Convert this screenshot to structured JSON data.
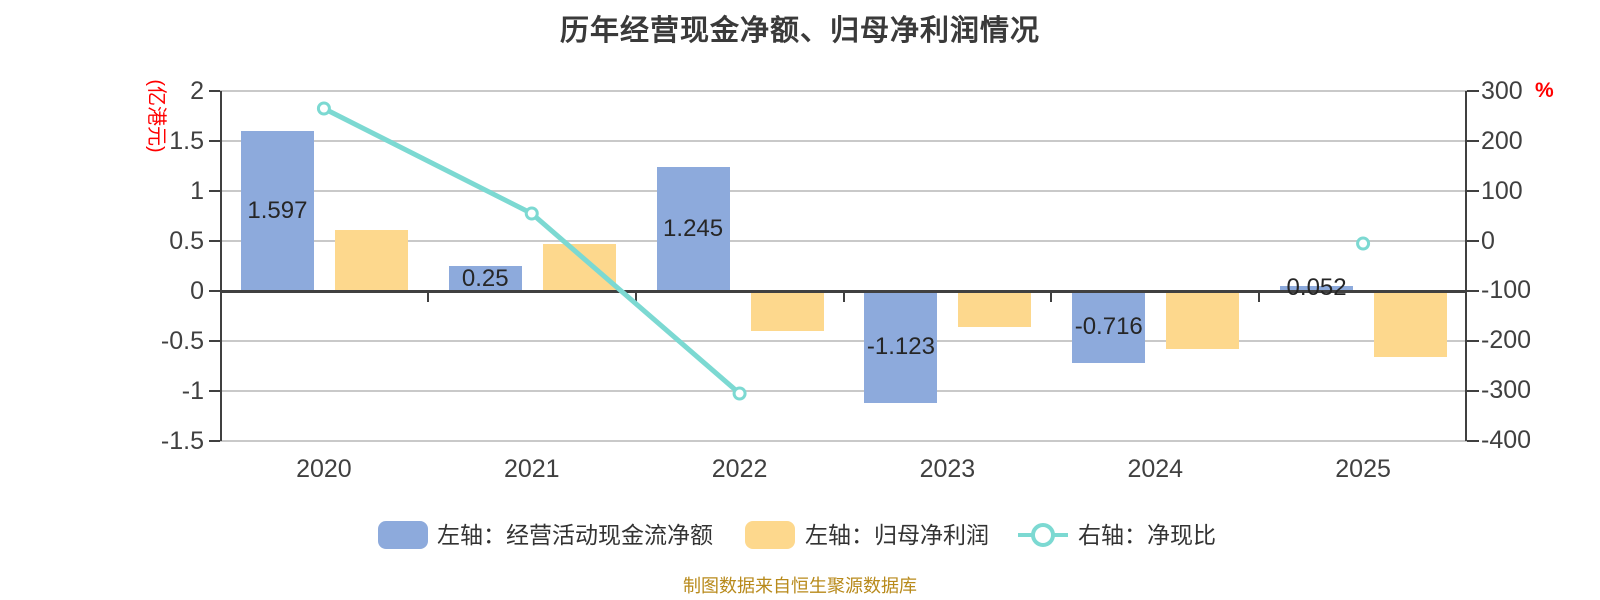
{
  "title": "历年经营现金净额、归母净利润情况",
  "footer": "制图数据来自恒生聚源数据库",
  "chart_data": {
    "type": "combo-bar-line",
    "categories": [
      "2020",
      "2021",
      "2022",
      "2023",
      "2024",
      "2025"
    ],
    "series": [
      {
        "name": "左轴：经营活动现金流净额",
        "type": "bar",
        "axis": "left",
        "values": [
          1.597,
          0.25,
          1.245,
          -1.123,
          -0.716,
          0.052
        ],
        "labels": [
          "1.597",
          "0.25",
          "1.245",
          "-1.123",
          "-0.716",
          "0.052"
        ]
      },
      {
        "name": "左轴：归母净利润",
        "type": "bar",
        "axis": "left",
        "values": [
          0.61,
          0.47,
          -0.4,
          -0.36,
          -0.58,
          -0.66
        ],
        "labels": []
      },
      {
        "name": "右轴：净现比",
        "type": "line",
        "axis": "right",
        "values": [
          265,
          55,
          -305,
          null,
          null,
          -5
        ],
        "labels": []
      }
    ],
    "left_axis": {
      "unit": "(亿港元)",
      "ticks": [
        2,
        1.5,
        1,
        0.5,
        0,
        -0.5,
        -1,
        -1.5
      ],
      "tick_labels": [
        "2",
        "1.5",
        "1",
        "0.5",
        "0",
        "-0.5",
        "-1",
        "-1.5"
      ],
      "range": [
        -1.5,
        2
      ]
    },
    "right_axis": {
      "unit": "%",
      "ticks": [
        300,
        200,
        100,
        0,
        -100,
        -200,
        -300,
        -400
      ],
      "tick_labels": [
        "300",
        "200",
        "100",
        "0",
        "-100",
        "-200",
        "-300",
        "-400"
      ],
      "range": [
        -400,
        300
      ]
    },
    "legend_position": "bottom",
    "grid": true
  },
  "colors": {
    "bar_cash_flow": "#8DAADC",
    "bar_net_profit": "#FDD88D",
    "line_ratio": "#7CD9D2",
    "marker_fill": "#FFFFFF",
    "grid": "#C9C9C9",
    "axis": "#404040",
    "tick_text": "#404040",
    "bar_label_text": "#262626",
    "title_text": "#3A3A3A",
    "legend_text": "#333333",
    "unit_label_red": "#FF0000",
    "footer_text": "#B88A1B",
    "background": "#FFFFFF"
  }
}
